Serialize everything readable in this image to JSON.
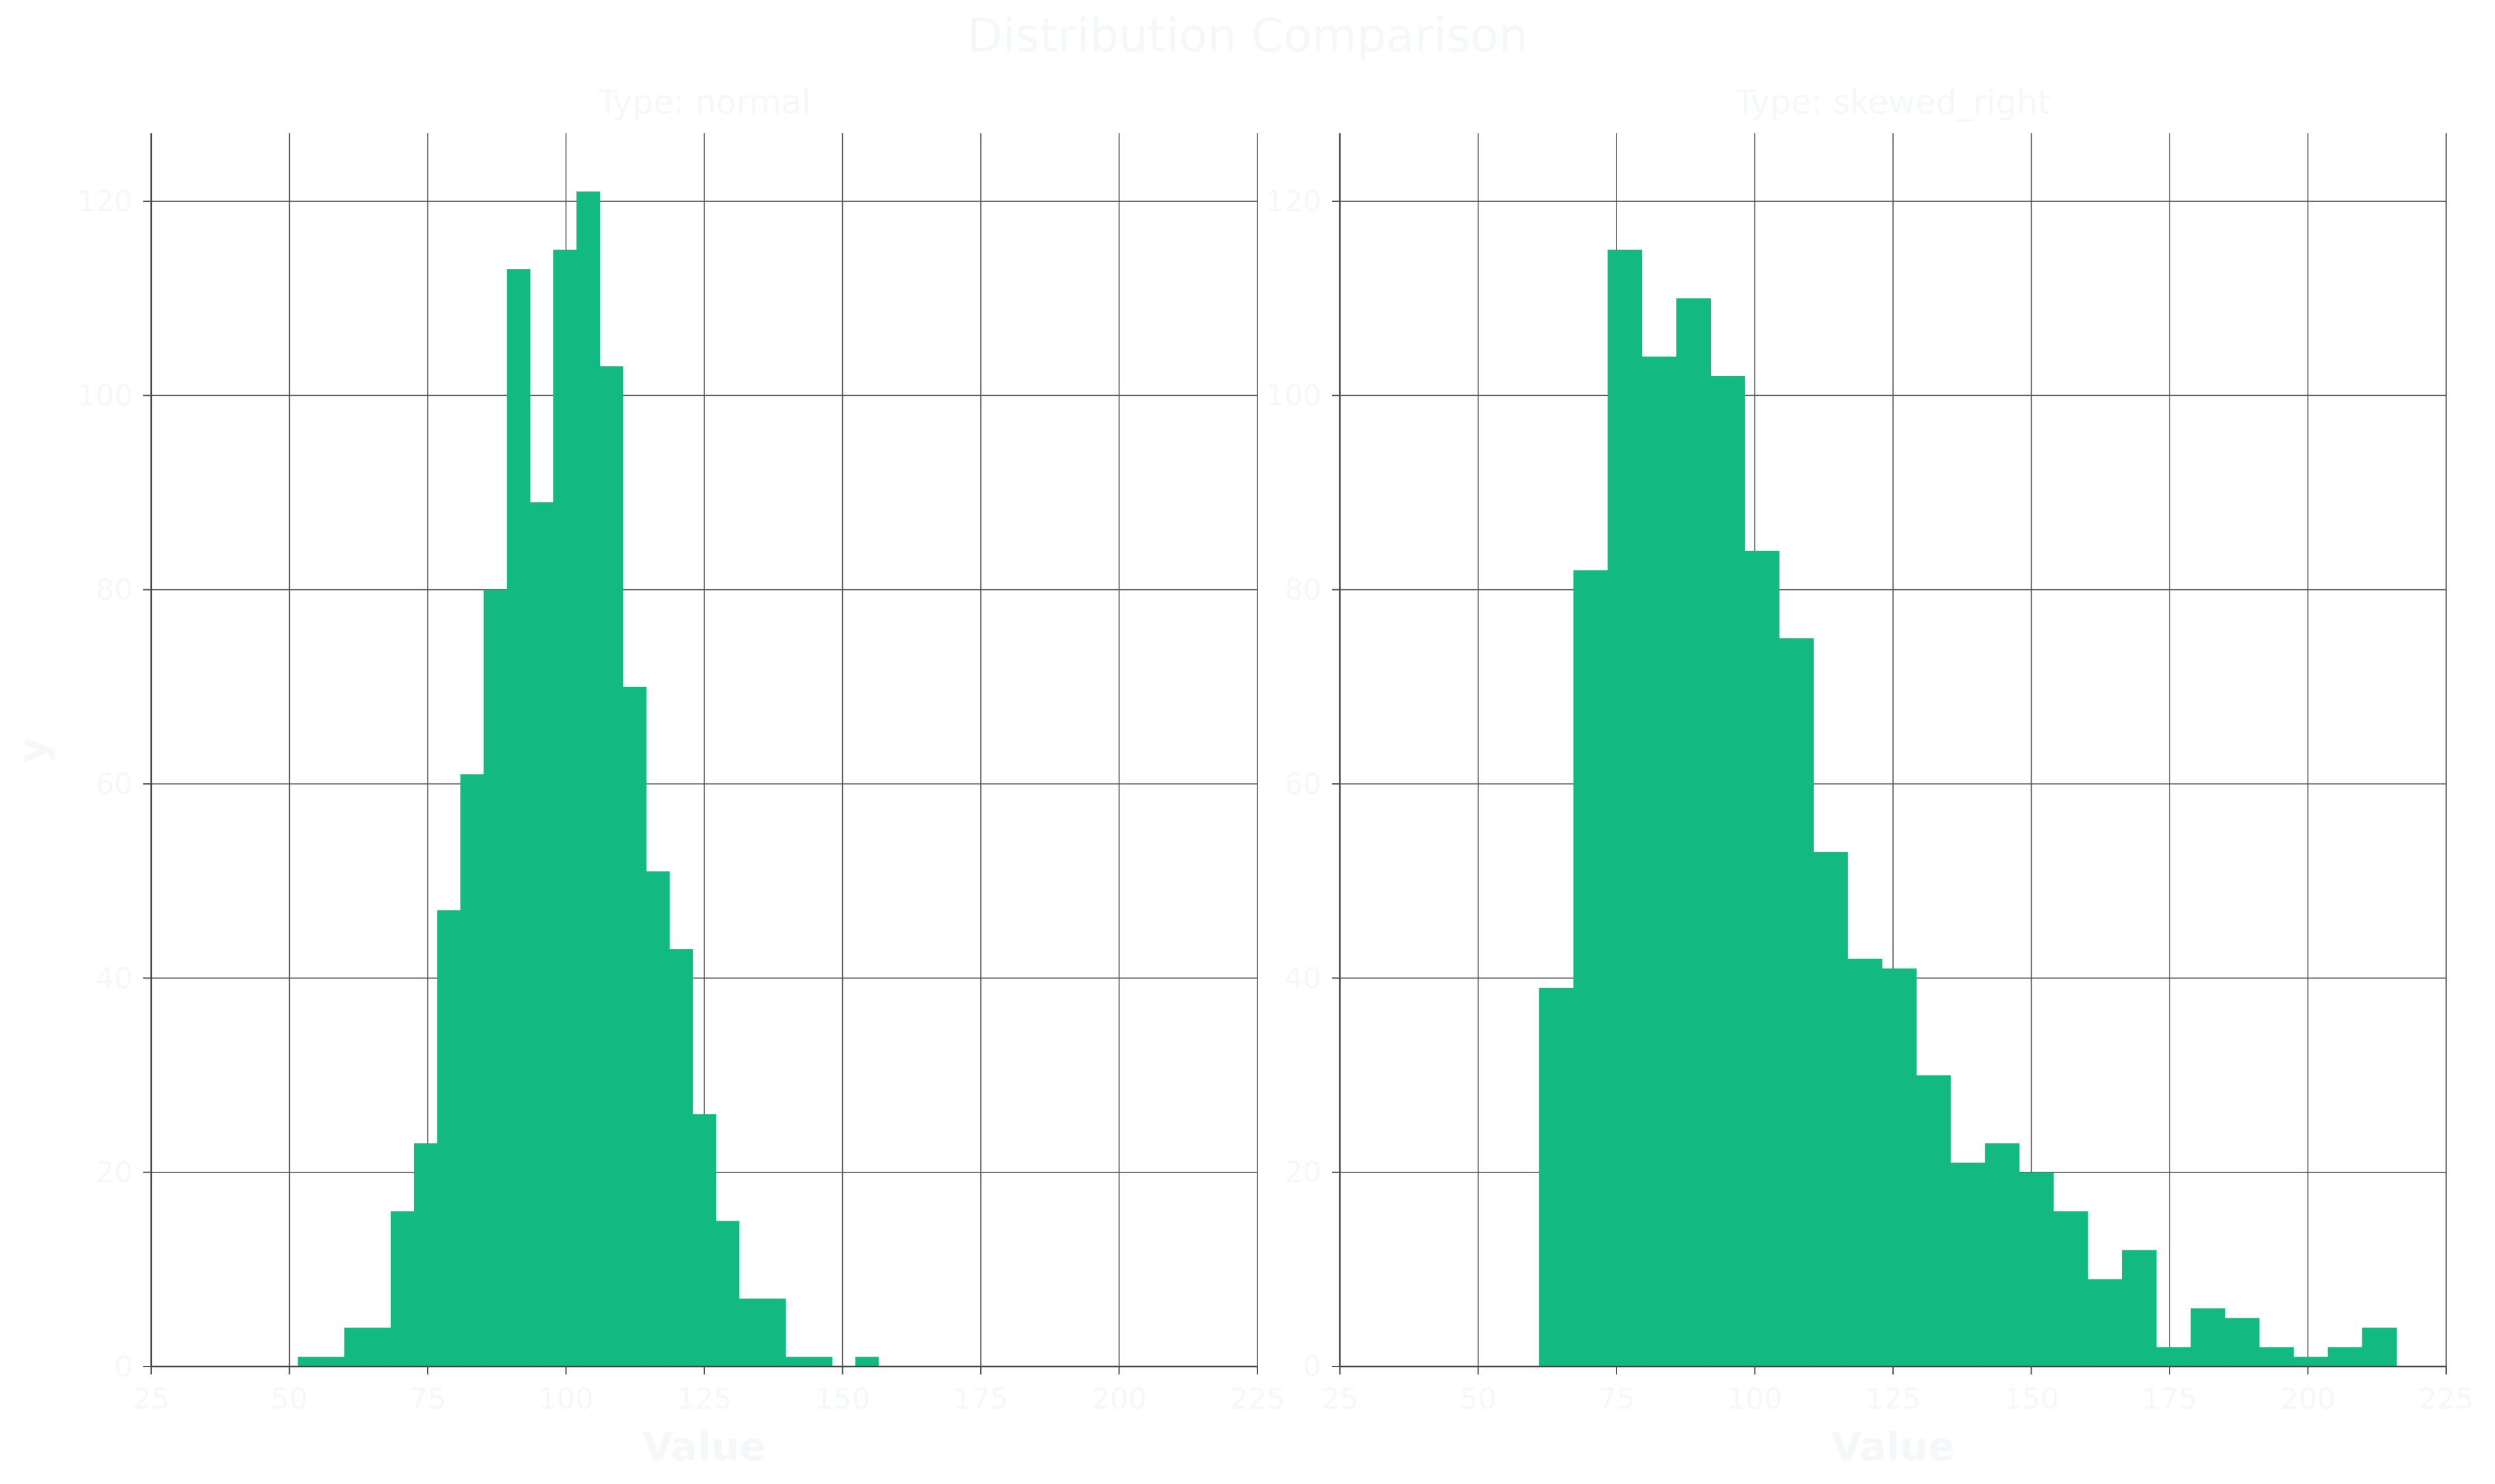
{
  "title": "Distribution Comparison",
  "colors": {
    "bar": "#12b981",
    "text": "#f6f7f9",
    "grid": "#555555"
  },
  "chart_data": [
    {
      "type": "bar",
      "subtitle": "Type: normal",
      "xlabel": "Value",
      "ylabel": "y",
      "xlim": [
        25,
        225
      ],
      "ylim": [
        0,
        127
      ],
      "xticks": [
        25,
        50,
        75,
        100,
        125,
        150,
        175,
        200,
        225
      ],
      "yticks": [
        0,
        20,
        40,
        60,
        80,
        100,
        120
      ],
      "bin_width": 4.2,
      "x": [
        51.5,
        55.7,
        59.9,
        64.1,
        68.3,
        72.5,
        76.7,
        80.9,
        85.1,
        89.3,
        93.5,
        97.7,
        101.9,
        106.1,
        110.3,
        114.5,
        118.7,
        122.9,
        127.1,
        131.3,
        135.5,
        139.7,
        143.9,
        148.1,
        152.3
      ],
      "values": [
        1,
        1,
        4,
        4,
        16,
        23,
        47,
        61,
        80,
        113,
        89,
        115,
        121,
        103,
        70,
        51,
        43,
        26,
        15,
        7,
        7,
        1,
        1,
        0,
        1
      ],
      "grid": true
    },
    {
      "type": "bar",
      "subtitle": "Type: skewed_right",
      "xlabel": "Value",
      "ylabel": "",
      "xlim": [
        25,
        225
      ],
      "ylim": [
        0,
        127
      ],
      "xticks": [
        25,
        50,
        75,
        100,
        125,
        150,
        175,
        200,
        225
      ],
      "yticks": [
        0,
        20,
        40,
        60,
        80,
        100,
        120
      ],
      "bin_width": 6.2,
      "x": [
        61,
        67.2,
        73.4,
        79.6,
        85.8,
        92,
        98.2,
        104.4,
        110.6,
        116.8,
        123,
        129.2,
        135.4,
        141.6,
        147.8,
        154,
        160.2,
        166.4,
        172.6,
        178.8,
        185,
        191.2,
        197.4,
        203.6,
        209.8
      ],
      "values": [
        39,
        82,
        115,
        104,
        110,
        102,
        84,
        75,
        53,
        42,
        41,
        30,
        21,
        23,
        20,
        16,
        9,
        12,
        2,
        6,
        5,
        2,
        1,
        2,
        4
      ],
      "grid": true
    }
  ]
}
